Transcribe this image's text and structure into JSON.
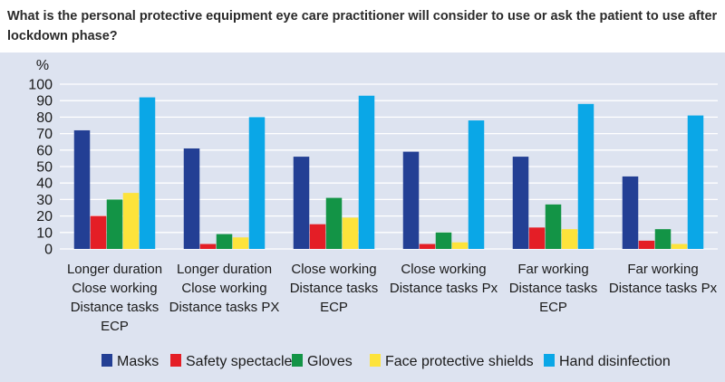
{
  "title": "What is the personal protective equipment eye care practitioner will consider to use or ask the patient to use after lockdown phase?",
  "chart_data": {
    "type": "bar",
    "title": "What is the personal protective equipment eye care practitioner will consider to use or ask the patient to use after lockdown phase?",
    "ylabel": "%",
    "xlabel": "",
    "ylim": [
      0,
      100
    ],
    "yticks": [
      0,
      10,
      20,
      30,
      40,
      50,
      60,
      70,
      80,
      90,
      100
    ],
    "grid": true,
    "legend_position": "bottom",
    "categories": [
      [
        "Longer duration",
        "Close working",
        "Distance tasks",
        "ECP"
      ],
      [
        "Longer duration",
        "Close working",
        "Distance tasks PX"
      ],
      [
        "Close working",
        "Distance tasks",
        "ECP"
      ],
      [
        "Close working",
        "Distance tasks Px"
      ],
      [
        "Far working",
        "Distance tasks",
        "ECP"
      ],
      [
        "Far working",
        "Distance tasks Px"
      ]
    ],
    "series": [
      {
        "name": "Masks",
        "color": "#233f94",
        "values": [
          72,
          61,
          56,
          59,
          56,
          44
        ]
      },
      {
        "name": "Safety spectacles",
        "color": "#e41e26",
        "values": [
          20,
          3,
          15,
          3,
          13,
          5
        ]
      },
      {
        "name": "Gloves",
        "color": "#139446",
        "values": [
          30,
          9,
          31,
          10,
          27,
          12
        ]
      },
      {
        "name": "Face protective shields",
        "color": "#fde33b",
        "values": [
          34,
          7,
          19,
          4,
          12,
          3
        ]
      },
      {
        "name": "Hand disinfection",
        "color": "#0aa7e7",
        "values": [
          92,
          80,
          93,
          78,
          88,
          81
        ]
      }
    ]
  }
}
